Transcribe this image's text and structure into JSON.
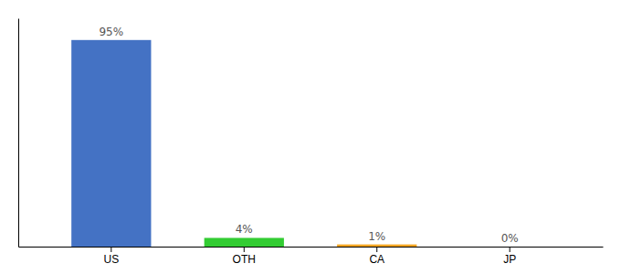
{
  "chart_data": {
    "type": "bar",
    "categories": [
      "US",
      "OTH",
      "CA",
      "JP"
    ],
    "values": [
      95,
      4,
      1,
      0
    ],
    "value_labels": [
      "95%",
      "4%",
      "1%",
      "0%"
    ],
    "data_labels": true,
    "colors": [
      "#4472C4",
      "#33CC33",
      "#F4A622",
      "#4472C4"
    ],
    "ylim": [
      0,
      105
    ],
    "grid": false,
    "tick_labels": "x"
  }
}
